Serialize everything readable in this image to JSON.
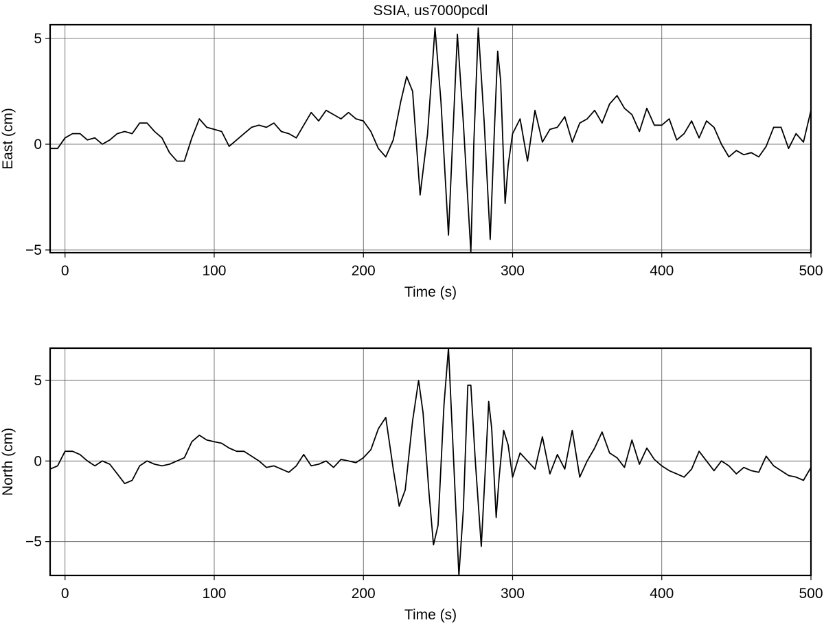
{
  "chart_data": [
    {
      "type": "line",
      "title": "SSIA, us7000pcdl",
      "y_label": "East (cm)",
      "x_label": "Time (s)",
      "color": "#000000",
      "grid": true,
      "xlim": [
        -10,
        500
      ],
      "xticks": [
        0,
        100,
        200,
        300,
        400,
        500
      ],
      "ylim": [
        -5.13,
        5.65
      ],
      "yticks": [
        {
          "value": -5,
          "label": "−5"
        },
        0,
        5
      ],
      "x": [
        -10,
        -5,
        0,
        5,
        10,
        15,
        20,
        25,
        30,
        35,
        40,
        45,
        50,
        55,
        60,
        65,
        70,
        75,
        80,
        85,
        90,
        95,
        100,
        105,
        110,
        115,
        120,
        125,
        130,
        135,
        140,
        145,
        150,
        155,
        160,
        165,
        170,
        175,
        180,
        185,
        190,
        195,
        200,
        205,
        210,
        215,
        220,
        225,
        229,
        233,
        238,
        243,
        248,
        252,
        257,
        260,
        263,
        267,
        272,
        274,
        277,
        281,
        285,
        288,
        290,
        292,
        295,
        297,
        300,
        305,
        310,
        315,
        320,
        325,
        330,
        335,
        340,
        345,
        350,
        355,
        360,
        365,
        370,
        375,
        380,
        385,
        390,
        395,
        400,
        405,
        410,
        415,
        420,
        425,
        430,
        435,
        440,
        445,
        450,
        455,
        460,
        465,
        470,
        475,
        480,
        485,
        490,
        495,
        500
      ],
      "values": [
        -0.2,
        -0.2,
        0.3,
        0.5,
        0.5,
        0.2,
        0.3,
        0.0,
        0.2,
        0.5,
        0.6,
        0.5,
        1.0,
        1.0,
        0.6,
        0.3,
        -0.4,
        -0.8,
        -0.8,
        0.3,
        1.2,
        0.8,
        0.7,
        0.6,
        -0.1,
        0.2,
        0.5,
        0.8,
        0.9,
        0.8,
        1.0,
        0.6,
        0.5,
        0.3,
        0.9,
        1.5,
        1.1,
        1.6,
        1.4,
        1.2,
        1.5,
        1.2,
        1.1,
        0.6,
        -0.2,
        -0.6,
        0.2,
        2.0,
        3.2,
        2.5,
        -2.4,
        0.5,
        5.5,
        2.0,
        -4.3,
        0.5,
        5.2,
        1.0,
        -5.1,
        0.0,
        5.5,
        1.0,
        -4.5,
        1.0,
        4.4,
        3.0,
        -2.8,
        -1.0,
        0.5,
        1.2,
        -0.8,
        1.6,
        0.1,
        0.7,
        0.8,
        1.3,
        0.1,
        1.0,
        1.2,
        1.6,
        1.0,
        1.9,
        2.3,
        1.7,
        1.4,
        0.6,
        1.7,
        0.9,
        0.9,
        1.2,
        0.2,
        0.5,
        1.1,
        0.3,
        1.1,
        0.8,
        0.0,
        -0.6,
        -0.3,
        -0.5,
        -0.4,
        -0.6,
        -0.1,
        0.8,
        0.8,
        -0.2,
        0.5,
        0.1,
        1.6
      ]
    },
    {
      "type": "line",
      "y_label": "North (cm)",
      "x_label": "Time (s)",
      "color": "#000000",
      "grid": true,
      "xlim": [
        -10,
        500
      ],
      "xticks": [
        0,
        100,
        200,
        300,
        400,
        500
      ],
      "ylim": [
        -7.1,
        7.0
      ],
      "yticks": [
        {
          "value": -5,
          "label": "−5"
        },
        0,
        5
      ],
      "x": [
        -10,
        -5,
        0,
        5,
        10,
        15,
        20,
        25,
        30,
        35,
        40,
        45,
        50,
        55,
        60,
        65,
        70,
        75,
        80,
        85,
        90,
        95,
        100,
        105,
        110,
        115,
        120,
        125,
        130,
        135,
        140,
        145,
        150,
        155,
        160,
        165,
        170,
        175,
        180,
        185,
        190,
        195,
        200,
        205,
        210,
        215,
        220,
        224,
        228,
        233,
        237,
        240,
        244,
        247,
        250,
        254,
        257,
        260,
        264,
        267,
        270,
        272,
        275,
        279,
        282,
        284,
        286,
        289,
        291,
        294,
        297,
        300,
        305,
        310,
        315,
        320,
        325,
        330,
        335,
        340,
        345,
        350,
        355,
        360,
        365,
        370,
        375,
        380,
        385,
        390,
        395,
        400,
        405,
        410,
        415,
        420,
        425,
        430,
        435,
        440,
        445,
        450,
        455,
        460,
        465,
        470,
        475,
        480,
        485,
        490,
        495,
        500
      ],
      "values": [
        -0.5,
        -0.3,
        0.6,
        0.6,
        0.4,
        0.0,
        -0.3,
        0.0,
        -0.2,
        -0.8,
        -1.4,
        -1.2,
        -0.3,
        0.0,
        -0.2,
        -0.3,
        -0.2,
        0.0,
        0.2,
        1.2,
        1.6,
        1.3,
        1.2,
        1.1,
        0.8,
        0.6,
        0.6,
        0.3,
        0.0,
        -0.4,
        -0.3,
        -0.5,
        -0.7,
        -0.3,
        0.4,
        -0.3,
        -0.2,
        0.0,
        -0.4,
        0.1,
        0.0,
        -0.1,
        0.2,
        0.7,
        2.0,
        2.7,
        -0.5,
        -2.8,
        -1.8,
        2.5,
        5.0,
        3.0,
        -2.0,
        -5.2,
        -4.0,
        3.5,
        7.0,
        1.0,
        -7.1,
        -3.0,
        4.7,
        4.7,
        0.0,
        -5.3,
        0.0,
        3.7,
        2.0,
        -3.5,
        -1.0,
        1.9,
        1.0,
        -1.0,
        0.5,
        0.0,
        -0.5,
        1.5,
        -0.8,
        0.4,
        -0.5,
        1.9,
        -1.0,
        0.0,
        0.8,
        1.8,
        0.5,
        0.2,
        -0.4,
        1.3,
        -0.2,
        0.8,
        0.1,
        -0.3,
        -0.6,
        -0.8,
        -1.0,
        -0.5,
        0.6,
        0.0,
        -0.6,
        0.0,
        -0.3,
        -0.8,
        -0.4,
        -0.6,
        -0.7,
        0.3,
        -0.3,
        -0.6,
        -0.9,
        -1.0,
        -1.2,
        -0.4
      ]
    }
  ]
}
